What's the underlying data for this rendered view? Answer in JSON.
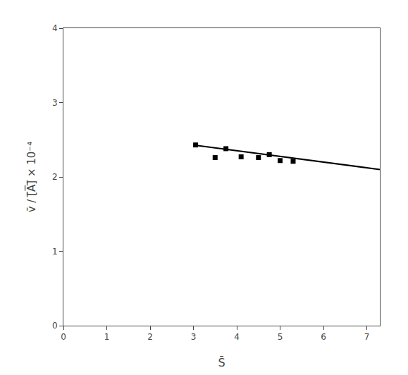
{
  "chart_data": {
    "type": "scatter",
    "xlabel": "S̄",
    "ylabel": "v̄ / [̅A̅]̅ × 10⁻⁴",
    "series": [
      {
        "type": "scatter",
        "marker": "square",
        "color": "#000000",
        "x": [
          3.05,
          3.5,
          3.75,
          4.1,
          4.5,
          4.75,
          5.0,
          5.3
        ],
        "values": [
          2.43,
          2.26,
          2.38,
          2.27,
          2.26,
          2.3,
          2.22,
          2.21
        ]
      },
      {
        "type": "line",
        "line_style": "solid",
        "color": "#000000",
        "x": [
          3.0,
          7.3
        ],
        "values": [
          2.43,
          2.1
        ]
      }
    ],
    "xlim": [
      0,
      7.3
    ],
    "ylim": [
      0,
      4
    ],
    "xticks": [
      0,
      1,
      2,
      3,
      4,
      5,
      6,
      7
    ],
    "yticks": [
      0,
      1,
      2,
      3,
      4
    ],
    "grid": false
  }
}
